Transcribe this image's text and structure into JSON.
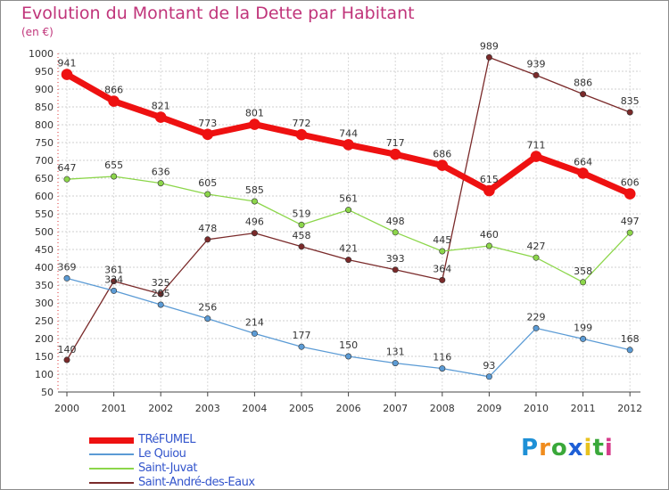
{
  "title": "Evolution du Montant de la Dette par Habitant",
  "subtitle": "(en €)",
  "logo": {
    "letters": [
      "P",
      "r",
      "o",
      "x",
      "i",
      "t",
      "i"
    ],
    "colors": [
      "#1e90d6",
      "#f08c1e",
      "#3aa83a",
      "#1e5fd6",
      "#e8c21e",
      "#3aa83a",
      "#d63a8a"
    ]
  },
  "chart_data": {
    "type": "line",
    "title": "Evolution du Montant de la Dette par Habitant",
    "subtitle": "(en €)",
    "xlabel": "",
    "ylabel": "",
    "x": [
      "2000",
      "2001",
      "2002",
      "2003",
      "2004",
      "2005",
      "2006",
      "2007",
      "2008",
      "2009",
      "2010",
      "2011",
      "2012"
    ],
    "ylim": [
      50,
      1000
    ],
    "yticks": [
      50,
      100,
      150,
      200,
      250,
      300,
      350,
      400,
      450,
      500,
      550,
      600,
      650,
      700,
      750,
      800,
      850,
      900,
      950,
      1000
    ],
    "grid": true,
    "legend_position": "bottom-left",
    "series": [
      {
        "name": "TRéFUMEL",
        "color": "#ee1111",
        "width": 7,
        "values": [
          941,
          866,
          821,
          773,
          801,
          772,
          744,
          717,
          686,
          615,
          711,
          664,
          606
        ]
      },
      {
        "name": "Le Quiou",
        "color": "#5b9bd5",
        "width": 1.3,
        "values": [
          369,
          334,
          295,
          256,
          214,
          177,
          150,
          131,
          116,
          93,
          229,
          199,
          168
        ]
      },
      {
        "name": "Saint-Juvat",
        "color": "#8cd64a",
        "width": 1.3,
        "values": [
          647,
          655,
          636,
          605,
          585,
          519,
          561,
          498,
          445,
          460,
          427,
          358,
          497
        ]
      },
      {
        "name": "Saint-André-des-Eaux",
        "color": "#7a2a2a",
        "width": 1.3,
        "values": [
          140,
          361,
          325,
          478,
          496,
          458,
          421,
          393,
          364,
          989,
          939,
          886,
          835
        ]
      }
    ]
  }
}
